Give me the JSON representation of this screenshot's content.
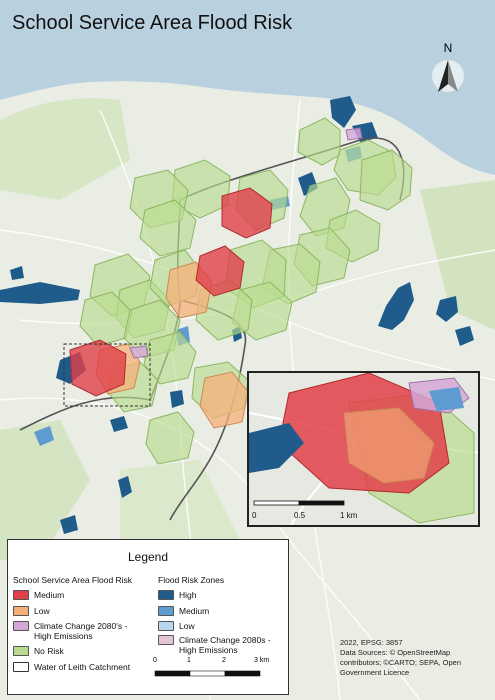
{
  "title": "School Service Area Flood Risk",
  "north_label": "N",
  "legend": {
    "title": "Legend",
    "school_heading": "School Service Area Flood Risk",
    "flood_heading": "Flood Risk Zones",
    "school_items": [
      {
        "label": "Medium",
        "color": "#e04048"
      },
      {
        "label": "Low",
        "color": "#f5b07a"
      },
      {
        "label": "Climate Change 2080's - High Emissions",
        "color": "#d6a8d8"
      },
      {
        "label": "No Risk",
        "color": "#b9db8f"
      },
      {
        "label": "Water of Leith Catchment",
        "color": "#ffffff"
      }
    ],
    "flood_items": [
      {
        "label": "High",
        "color": "#1f5c8c"
      },
      {
        "label": "Medium",
        "color": "#5e9bd1"
      },
      {
        "label": "Low",
        "color": "#b8d7ee"
      },
      {
        "label": "Climate Change 2080s - High Emissions",
        "color": "#e3c6d6"
      }
    ]
  },
  "main_scale": {
    "ticks": [
      "0",
      "1",
      "2",
      "3 km"
    ]
  },
  "inset_scale": {
    "ticks": [
      "0",
      "0.5",
      "1 km"
    ]
  },
  "credits": "2022, EPSG: 3857\nData Sources: © OpenStreetMap contributors; ©CARTO; SEPA, Open Government Licence",
  "colors": {
    "sea": "#b9d1df",
    "land": "#e9ede4",
    "green": "#b9db8f",
    "water_high": "#1f5c8c"
  }
}
